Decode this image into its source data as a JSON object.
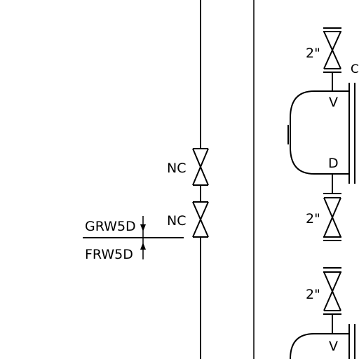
{
  "labels": {
    "nc_upper": "NC",
    "nc_lower": "NC",
    "grw5d": "GRW5D",
    "frw5d": "FRW5D",
    "size_top": "2\"",
    "size_mid": "2\"",
    "size_bottom": "2\"",
    "v_top": "V",
    "d_mid": "D",
    "v_bottom": "V",
    "c_edge": "C"
  },
  "colors": {
    "line": "#000000",
    "background": "#ffffff"
  }
}
